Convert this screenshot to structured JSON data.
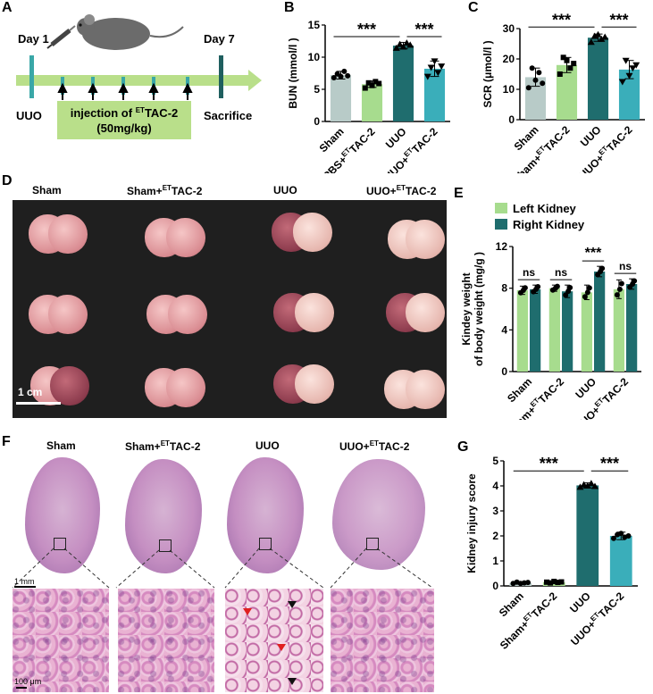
{
  "panels": {
    "A": {
      "label": "A",
      "day1": "Day 1",
      "day7": "Day 7",
      "uuo": "UUO",
      "sacrifice": "Sacrifice",
      "injection_line1": "injection of",
      "injection_sup": "ET",
      "injection_tail": "TAC-2",
      "injection_line2": "(50mg/kg)"
    },
    "B": {
      "label": "B"
    },
    "C": {
      "label": "C"
    },
    "D": {
      "label": "D",
      "groups": [
        {
          "name": "Sham",
          "sup": "",
          "tail": ""
        },
        {
          "name": "Sham+",
          "sup": "ET",
          "tail": "TAC-2"
        },
        {
          "name": "UUO",
          "sup": "",
          "tail": ""
        },
        {
          "name": "UUO+",
          "sup": "ET",
          "tail": "TAC-2"
        }
      ],
      "scale": "1 cm"
    },
    "E": {
      "label": "E"
    },
    "F": {
      "label": "F",
      "groups": [
        {
          "name": "Sham",
          "sup": "",
          "tail": ""
        },
        {
          "name": "Sham+",
          "sup": "ET",
          "tail": "TAC-2"
        },
        {
          "name": "UUO",
          "sup": "",
          "tail": ""
        },
        {
          "name": "UUO+",
          "sup": "ET",
          "tail": "TAC-2"
        }
      ],
      "scale_top": "1 mm",
      "scale_bottom": "100 μm"
    },
    "G": {
      "label": "G"
    }
  },
  "chart_data": [
    {
      "id": "B",
      "type": "bar",
      "ylabel": "BUN (mmol/l )",
      "ylim": [
        0,
        15
      ],
      "yticks": [
        0,
        5,
        10,
        15
      ],
      "categories": [
        {
          "name": "Sham",
          "sup": "",
          "tail": ""
        },
        {
          "name": "PBS+",
          "sup": "ET",
          "tail": "TAC-2"
        },
        {
          "name": "UUO",
          "sup": "",
          "tail": ""
        },
        {
          "name": "UUO+",
          "sup": "ET",
          "tail": "TAC-2"
        }
      ],
      "values": [
        7.2,
        5.8,
        11.8,
        8.2
      ],
      "errors": [
        0.6,
        0.5,
        0.5,
        1.2
      ],
      "points": [
        [
          6.8,
          7.4,
          7.0,
          7.8,
          7.1
        ],
        [
          5.2,
          6.0,
          5.6,
          6.2,
          5.9
        ],
        [
          11.4,
          12.0,
          11.6,
          12.2,
          11.9
        ],
        [
          7.0,
          8.4,
          9.4,
          7.6,
          8.6
        ]
      ],
      "colors": [
        "#b8cbc8",
        "#a7dc8e",
        "#1f6d6e",
        "#3aaeba"
      ],
      "markers": [
        "circle",
        "square",
        "triangle",
        "triangle-down"
      ],
      "significance": [
        {
          "from": 0,
          "to": 2,
          "label": "***",
          "y": 13.2
        },
        {
          "from": 2,
          "to": 3,
          "label": "***",
          "y": 13.2
        }
      ]
    },
    {
      "id": "C",
      "type": "bar",
      "ylabel": "SCR (μmol/l )",
      "ylim": [
        0,
        30
      ],
      "yticks": [
        0,
        10,
        20,
        30
      ],
      "categories": [
        {
          "name": "Sham",
          "sup": "",
          "tail": ""
        },
        {
          "name": "Sham+",
          "sup": "ET",
          "tail": "TAC-2"
        },
        {
          "name": "UUO",
          "sup": "",
          "tail": ""
        },
        {
          "name": "UUO+",
          "sup": "ET",
          "tail": "TAC-2"
        }
      ],
      "values": [
        14.0,
        18.0,
        27.0,
        16.5
      ],
      "errors": [
        3.0,
        2.5,
        1.2,
        3.0
      ],
      "points": [
        [
          10.5,
          17.0,
          13.0,
          15.5,
          12.0
        ],
        [
          15.0,
          20.5,
          19.5,
          17.0,
          18.5
        ],
        [
          25.5,
          27.5,
          28.0,
          26.5,
          27.2
        ],
        [
          12.5,
          19.5,
          14.5,
          17.0,
          18.0
        ]
      ],
      "colors": [
        "#b8cbc8",
        "#a7dc8e",
        "#1f6d6e",
        "#3aaeba"
      ],
      "markers": [
        "circle",
        "square",
        "triangle",
        "triangle-down"
      ],
      "significance": [
        {
          "from": 0,
          "to": 2,
          "label": "***",
          "y": 30.5
        },
        {
          "from": 2,
          "to": 3,
          "label": "***",
          "y": 30.5
        }
      ]
    },
    {
      "id": "E",
      "type": "bar",
      "ylabel_line1": "Kindey weight",
      "ylabel_line2": "of body weight (mg/g )",
      "ylim": [
        0,
        12
      ],
      "yticks": [
        0,
        4,
        8,
        12
      ],
      "categories": [
        {
          "name": "Sham",
          "sup": "",
          "tail": ""
        },
        {
          "name": "Sham+",
          "sup": "ET",
          "tail": "TAC-2"
        },
        {
          "name": "UUO",
          "sup": "",
          "tail": ""
        },
        {
          "name": "UUO+",
          "sup": "ET",
          "tail": "TAC-2"
        }
      ],
      "series": [
        {
          "name": "Left Kidney",
          "color": "#a7dc8e",
          "values": [
            7.8,
            8.0,
            7.6,
            7.9
          ],
          "errors": [
            0.4,
            0.3,
            0.7,
            0.9
          ]
        },
        {
          "name": "Right Kidney",
          "color": "#1f6d6e",
          "values": [
            7.9,
            7.7,
            9.6,
            8.4
          ],
          "errors": [
            0.4,
            0.6,
            0.5,
            0.5
          ]
        }
      ],
      "annotations": [
        "ns",
        "ns",
        "***",
        "ns"
      ]
    },
    {
      "id": "G",
      "type": "bar",
      "ylabel": "Kidney injury score",
      "ylim": [
        0,
        5
      ],
      "yticks": [
        0,
        1,
        2,
        3,
        4,
        5
      ],
      "categories": [
        {
          "name": "Sham",
          "sup": "",
          "tail": ""
        },
        {
          "name": "Sham+",
          "sup": "ET",
          "tail": "TAC-2"
        },
        {
          "name": "UUO",
          "sup": "",
          "tail": ""
        },
        {
          "name": "UUO+",
          "sup": "ET",
          "tail": "TAC-2"
        }
      ],
      "values": [
        0.12,
        0.15,
        4.02,
        2.0
      ],
      "errors": [
        0.05,
        0.05,
        0.1,
        0.15
      ],
      "points": [
        [
          0.1,
          0.15,
          0.1,
          0.12,
          0.14
        ],
        [
          0.15,
          0.12,
          0.18,
          0.14,
          0.16
        ],
        [
          3.95,
          4.05,
          4.0,
          4.1,
          3.98
        ],
        [
          1.9,
          2.05,
          2.1,
          1.95,
          2.0
        ]
      ],
      "colors": [
        "#b8cbc8",
        "#a7dc8e",
        "#1f6d6e",
        "#3aaeba"
      ],
      "markers": [
        "circle",
        "square",
        "triangle",
        "circle"
      ],
      "significance": [
        {
          "from": 0,
          "to": 2,
          "label": "***",
          "y": 4.6
        },
        {
          "from": 2,
          "to": 3,
          "label": "***",
          "y": 4.6
        }
      ]
    }
  ]
}
